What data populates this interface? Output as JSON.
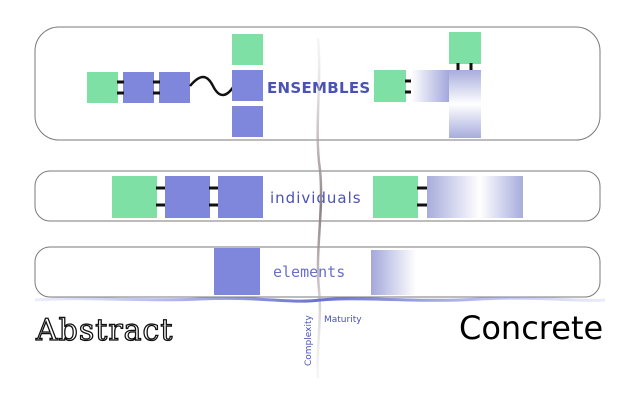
{
  "levels": {
    "ensembles": "ENSEMBLES",
    "individuals": "individuals",
    "elements": "elements"
  },
  "axes": {
    "complexity": "Complexity",
    "maturity": "Maturity"
  },
  "poles": {
    "abstract": "Abstract",
    "concrete": "Concrete"
  },
  "colors": {
    "green": "#7ee0a4",
    "blue": "#7f87dc",
    "label": "#4a52b8"
  }
}
